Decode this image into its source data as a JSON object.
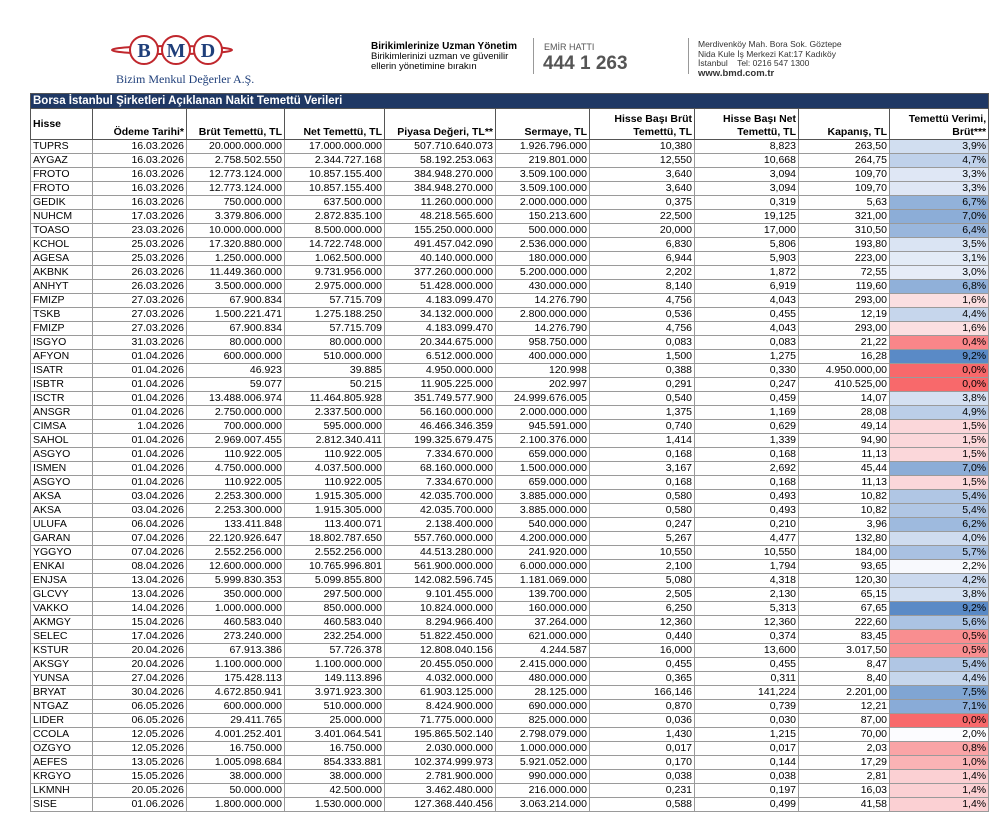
{
  "header": {
    "logo": [
      "B",
      "M",
      "D"
    ],
    "company": "Bizim Menkul Değerler A.Ş.",
    "slogan_title": "Birikimlerinize Uzman Yönetim",
    "slogan_lines": [
      "Birikimlerinizi uzman ve güvenilir",
      "ellerin yönetimine bırakın"
    ],
    "hotline_label": "EMİR HATTI",
    "hotline": "444 1 263",
    "address": [
      "Merdivenköy Mah. Bora Sok. Göztepe",
      "Nida Kule İş Merkezi Kat:17 Kadıköy",
      "İstanbul    Tel: 0216 547 1300"
    ],
    "website": "www.bmd.com.tr"
  },
  "table": {
    "title": "Borsa İstanbul Şirketleri Açıklanan Nakit Temettü Verileri",
    "columns": [
      "Hisse",
      "Ödeme Tarihi*",
      "Brüt Temettü, TL",
      "Net Temettü, TL",
      "Piyasa Değeri, TL**",
      "Sermaye, TL",
      "Hisse Başı Brüt Temettü, TL",
      "Hisse Başı Net Temettü, TL",
      "Kapanış, TL",
      "Temettü Verimi, Brüt***"
    ],
    "rows": [
      [
        "TUPRS",
        "16.03.2026",
        "20.000.000.000",
        "17.000.000.000",
        "507.710.640.073",
        "1.926.796.000",
        "10,380",
        "8,823",
        "263,50",
        "3,9%"
      ],
      [
        "AYGAZ",
        "16.03.2026",
        "2.758.502.550",
        "2.344.727.168",
        "58.192.253.063",
        "219.801.000",
        "12,550",
        "10,668",
        "264,75",
        "4,7%"
      ],
      [
        "FROTO",
        "16.03.2026",
        "12.773.124.000",
        "10.857.155.400",
        "384.948.270.000",
        "3.509.100.000",
        "3,640",
        "3,094",
        "109,70",
        "3,3%"
      ],
      [
        "FROTO",
        "16.03.2026",
        "12.773.124.000",
        "10.857.155.400",
        "384.948.270.000",
        "3.509.100.000",
        "3,640",
        "3,094",
        "109,70",
        "3,3%"
      ],
      [
        "GEDIK",
        "16.03.2026",
        "750.000.000",
        "637.500.000",
        "11.260.000.000",
        "2.000.000.000",
        "0,375",
        "0,319",
        "5,63",
        "6,7%"
      ],
      [
        "NUHCM",
        "17.03.2026",
        "3.379.806.000",
        "2.872.835.100",
        "48.218.565.600",
        "150.213.600",
        "22,500",
        "19,125",
        "321,00",
        "7,0%"
      ],
      [
        "TOASO",
        "23.03.2026",
        "10.000.000.000",
        "8.500.000.000",
        "155.250.000.000",
        "500.000.000",
        "20,000",
        "17,000",
        "310,50",
        "6,4%"
      ],
      [
        "KCHOL",
        "25.03.2026",
        "17.320.880.000",
        "14.722.748.000",
        "491.457.042.090",
        "2.536.000.000",
        "6,830",
        "5,806",
        "193,80",
        "3,5%"
      ],
      [
        "AGESA",
        "25.03.2026",
        "1.250.000.000",
        "1.062.500.000",
        "40.140.000.000",
        "180.000.000",
        "6,944",
        "5,903",
        "223,00",
        "3,1%"
      ],
      [
        "AKBNK",
        "26.03.2026",
        "11.449.360.000",
        "9.731.956.000",
        "377.260.000.000",
        "5.200.000.000",
        "2,202",
        "1,872",
        "72,55",
        "3,0%"
      ],
      [
        "ANHYT",
        "26.03.2026",
        "3.500.000.000",
        "2.975.000.000",
        "51.428.000.000",
        "430.000.000",
        "8,140",
        "6,919",
        "119,60",
        "6,8%"
      ],
      [
        "FMIZP",
        "27.03.2026",
        "67.900.834",
        "57.715.709",
        "4.183.099.470",
        "14.276.790",
        "4,756",
        "4,043",
        "293,00",
        "1,6%"
      ],
      [
        "TSKB",
        "27.03.2026",
        "1.500.221.471",
        "1.275.188.250",
        "34.132.000.000",
        "2.800.000.000",
        "0,536",
        "0,455",
        "12,19",
        "4,4%"
      ],
      [
        "FMIZP",
        "27.03.2026",
        "67.900.834",
        "57.715.709",
        "4.183.099.470",
        "14.276.790",
        "4,756",
        "4,043",
        "293,00",
        "1,6%"
      ],
      [
        "ISGYO",
        "31.03.2026",
        "80.000.000",
        "80.000.000",
        "20.344.675.000",
        "958.750.000",
        "0,083",
        "0,083",
        "21,22",
        "0,4%"
      ],
      [
        "AFYON",
        "01.04.2026",
        "600.000.000",
        "510.000.000",
        "6.512.000.000",
        "400.000.000",
        "1,500",
        "1,275",
        "16,28",
        "9,2%"
      ],
      [
        "ISATR",
        "01.04.2026",
        "46.923",
        "39.885",
        "4.950.000.000",
        "120.998",
        "0,388",
        "0,330",
        "4.950.000,00",
        "0,0%"
      ],
      [
        "ISBTR",
        "01.04.2026",
        "59.077",
        "50.215",
        "11.905.225.000",
        "202.997",
        "0,291",
        "0,247",
        "410.525,00",
        "0,0%"
      ],
      [
        "ISCTR",
        "01.04.2026",
        "13.488.006.974",
        "11.464.805.928",
        "351.749.577.900",
        "24.999.676.005",
        "0,540",
        "0,459",
        "14,07",
        "3,8%"
      ],
      [
        "ANSGR",
        "01.04.2026",
        "2.750.000.000",
        "2.337.500.000",
        "56.160.000.000",
        "2.000.000.000",
        "1,375",
        "1,169",
        "28,08",
        "4,9%"
      ],
      [
        "CIMSA",
        "1.04.2026",
        "700.000.000",
        "595.000.000",
        "46.466.346.359",
        "945.591.000",
        "0,740",
        "0,629",
        "49,14",
        "1,5%"
      ],
      [
        "SAHOL",
        "01.04.2026",
        "2.969.007.455",
        "2.812.340.411",
        "199.325.679.475",
        "2.100.376.000",
        "1,414",
        "1,339",
        "94,90",
        "1,5%"
      ],
      [
        "ASGYO",
        "01.04.2026",
        "110.922.005",
        "110.922.005",
        "7.334.670.000",
        "659.000.000",
        "0,168",
        "0,168",
        "11,13",
        "1,5%"
      ],
      [
        "ISMEN",
        "01.04.2026",
        "4.750.000.000",
        "4.037.500.000",
        "68.160.000.000",
        "1.500.000.000",
        "3,167",
        "2,692",
        "45,44",
        "7,0%"
      ],
      [
        "ASGYO",
        "01.04.2026",
        "110.922.005",
        "110.922.005",
        "7.334.670.000",
        "659.000.000",
        "0,168",
        "0,168",
        "11,13",
        "1,5%"
      ],
      [
        "AKSA",
        "03.04.2026",
        "2.253.300.000",
        "1.915.305.000",
        "42.035.700.000",
        "3.885.000.000",
        "0,580",
        "0,493",
        "10,82",
        "5,4%"
      ],
      [
        "AKSA",
        "03.04.2026",
        "2.253.300.000",
        "1.915.305.000",
        "42.035.700.000",
        "3.885.000.000",
        "0,580",
        "0,493",
        "10,82",
        "5,4%"
      ],
      [
        "ULUFA",
        "06.04.2026",
        "133.411.848",
        "113.400.071",
        "2.138.400.000",
        "540.000.000",
        "0,247",
        "0,210",
        "3,96",
        "6,2%"
      ],
      [
        "GARAN",
        "07.04.2026",
        "22.120.926.647",
        "18.802.787.650",
        "557.760.000.000",
        "4.200.000.000",
        "5,267",
        "4,477",
        "132,80",
        "4,0%"
      ],
      [
        "YGGYO",
        "07.04.2026",
        "2.552.256.000",
        "2.552.256.000",
        "44.513.280.000",
        "241.920.000",
        "10,550",
        "10,550",
        "184,00",
        "5,7%"
      ],
      [
        "ENKAI",
        "08.04.2026",
        "12.600.000.000",
        "10.765.996.801",
        "561.900.000.000",
        "6.000.000.000",
        "2,100",
        "1,794",
        "93,65",
        "2,2%"
      ],
      [
        "ENJSA",
        "13.04.2026",
        "5.999.830.353",
        "5.099.855.800",
        "142.082.596.745",
        "1.181.069.000",
        "5,080",
        "4,318",
        "120,30",
        "4,2%"
      ],
      [
        "GLCVY",
        "13.04.2026",
        "350.000.000",
        "297.500.000",
        "9.101.455.000",
        "139.700.000",
        "2,505",
        "2,130",
        "65,15",
        "3,8%"
      ],
      [
        "VAKKO",
        "14.04.2026",
        "1.000.000.000",
        "850.000.000",
        "10.824.000.000",
        "160.000.000",
        "6,250",
        "5,313",
        "67,65",
        "9,2%"
      ],
      [
        "AKMGY",
        "15.04.2026",
        "460.583.040",
        "460.583.040",
        "8.294.966.400",
        "37.264.000",
        "12,360",
        "12,360",
        "222,60",
        "5,6%"
      ],
      [
        "SELEC",
        "17.04.2026",
        "273.240.000",
        "232.254.000",
        "51.822.450.000",
        "621.000.000",
        "0,440",
        "0,374",
        "83,45",
        "0,5%"
      ],
      [
        "KSTUR",
        "20.04.2026",
        "67.913.386",
        "57.726.378",
        "12.808.040.156",
        "4.244.587",
        "16,000",
        "13,600",
        "3.017,50",
        "0,5%"
      ],
      [
        "AKSGY",
        "20.04.2026",
        "1.100.000.000",
        "1.100.000.000",
        "20.455.050.000",
        "2.415.000.000",
        "0,455",
        "0,455",
        "8,47",
        "5,4%"
      ],
      [
        "YUNSA",
        "27.04.2026",
        "175.428.113",
        "149.113.896",
        "4.032.000.000",
        "480.000.000",
        "0,365",
        "0,311",
        "8,40",
        "4,4%"
      ],
      [
        "BRYAT",
        "30.04.2026",
        "4.672.850.941",
        "3.971.923.300",
        "61.903.125.000",
        "28.125.000",
        "166,146",
        "141,224",
        "2.201,00",
        "7,5%"
      ],
      [
        "NTGAZ",
        "06.05.2026",
        "600.000.000",
        "510.000.000",
        "8.424.900.000",
        "690.000.000",
        "0,870",
        "0,739",
        "12,21",
        "7,1%"
      ],
      [
        "LIDER",
        "06.05.2026",
        "29.411.765",
        "25.000.000",
        "71.775.000.000",
        "825.000.000",
        "0,036",
        "0,030",
        "87,00",
        "0,0%"
      ],
      [
        "CCOLA",
        "12.05.2026",
        "4.001.252.401",
        "3.401.064.541",
        "195.865.502.140",
        "2.798.079.000",
        "1,430",
        "1,215",
        "70,00",
        "2,0%"
      ],
      [
        "OZGYO",
        "12.05.2026",
        "16.750.000",
        "16.750.000",
        "2.030.000.000",
        "1.000.000.000",
        "0,017",
        "0,017",
        "2,03",
        "0,8%"
      ],
      [
        "AEFES",
        "13.05.2026",
        "1.005.098.684",
        "854.333.881",
        "102.374.999.973",
        "5.921.052.000",
        "0,170",
        "0,144",
        "17,29",
        "1,0%"
      ],
      [
        "KRGYO",
        "15.05.2026",
        "38.000.000",
        "38.000.000",
        "2.781.900.000",
        "990.000.000",
        "0,038",
        "0,038",
        "2,81",
        "1,4%"
      ],
      [
        "LKMNH",
        "20.05.2026",
        "50.000.000",
        "42.500.000",
        "3.462.480.000",
        "216.000.000",
        "0,231",
        "0,197",
        "16,03",
        "1,4%"
      ],
      [
        "SISE",
        "01.06.2026",
        "1.800.000.000",
        "1.530.000.000",
        "127.368.440.456",
        "3.063.214.000",
        "0,588",
        "0,499",
        "41,58",
        "1,4%"
      ]
    ]
  }
}
